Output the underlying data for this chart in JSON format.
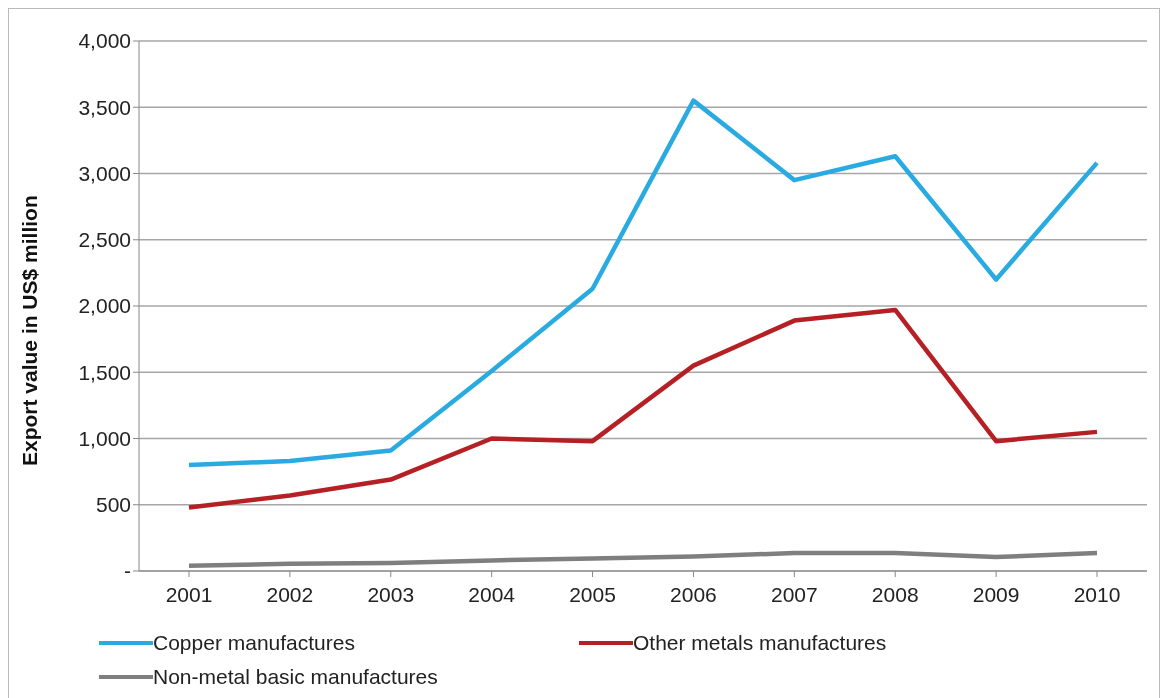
{
  "chart_data": {
    "type": "line",
    "ylabel": "Export value in US$ million",
    "categories": [
      "2001",
      "2002",
      "2003",
      "2004",
      "2005",
      "2006",
      "2007",
      "2008",
      "2009",
      "2010"
    ],
    "series": [
      {
        "name": "Copper manufactures",
        "color": "#29abe2",
        "values": [
          800,
          830,
          910,
          1510,
          2130,
          3550,
          2950,
          3130,
          2200,
          3080
        ]
      },
      {
        "name": "Other metals manufactures",
        "color": "#b52025",
        "values": [
          480,
          570,
          690,
          1000,
          980,
          1550,
          1890,
          1970,
          980,
          1050
        ]
      },
      {
        "name": "Non-metal basic manufactures",
        "color": "#7f7f80",
        "values": [
          40,
          55,
          60,
          80,
          95,
          110,
          135,
          135,
          105,
          135
        ]
      }
    ],
    "ylim": [
      0,
      4000
    ],
    "yticks": [
      {
        "value": 0,
        "label": "-"
      },
      {
        "value": 500,
        "label": "500"
      },
      {
        "value": 1000,
        "label": "1,000"
      },
      {
        "value": 1500,
        "label": "1,500"
      },
      {
        "value": 2000,
        "label": "2,000"
      },
      {
        "value": 2500,
        "label": "2,500"
      },
      {
        "value": 3000,
        "label": "3,000"
      },
      {
        "value": 3500,
        "label": "3,500"
      },
      {
        "value": 4000,
        "label": "4,000"
      }
    ],
    "grid": "y",
    "legend": "bottom",
    "marker": "none",
    "line_style": "solid"
  }
}
